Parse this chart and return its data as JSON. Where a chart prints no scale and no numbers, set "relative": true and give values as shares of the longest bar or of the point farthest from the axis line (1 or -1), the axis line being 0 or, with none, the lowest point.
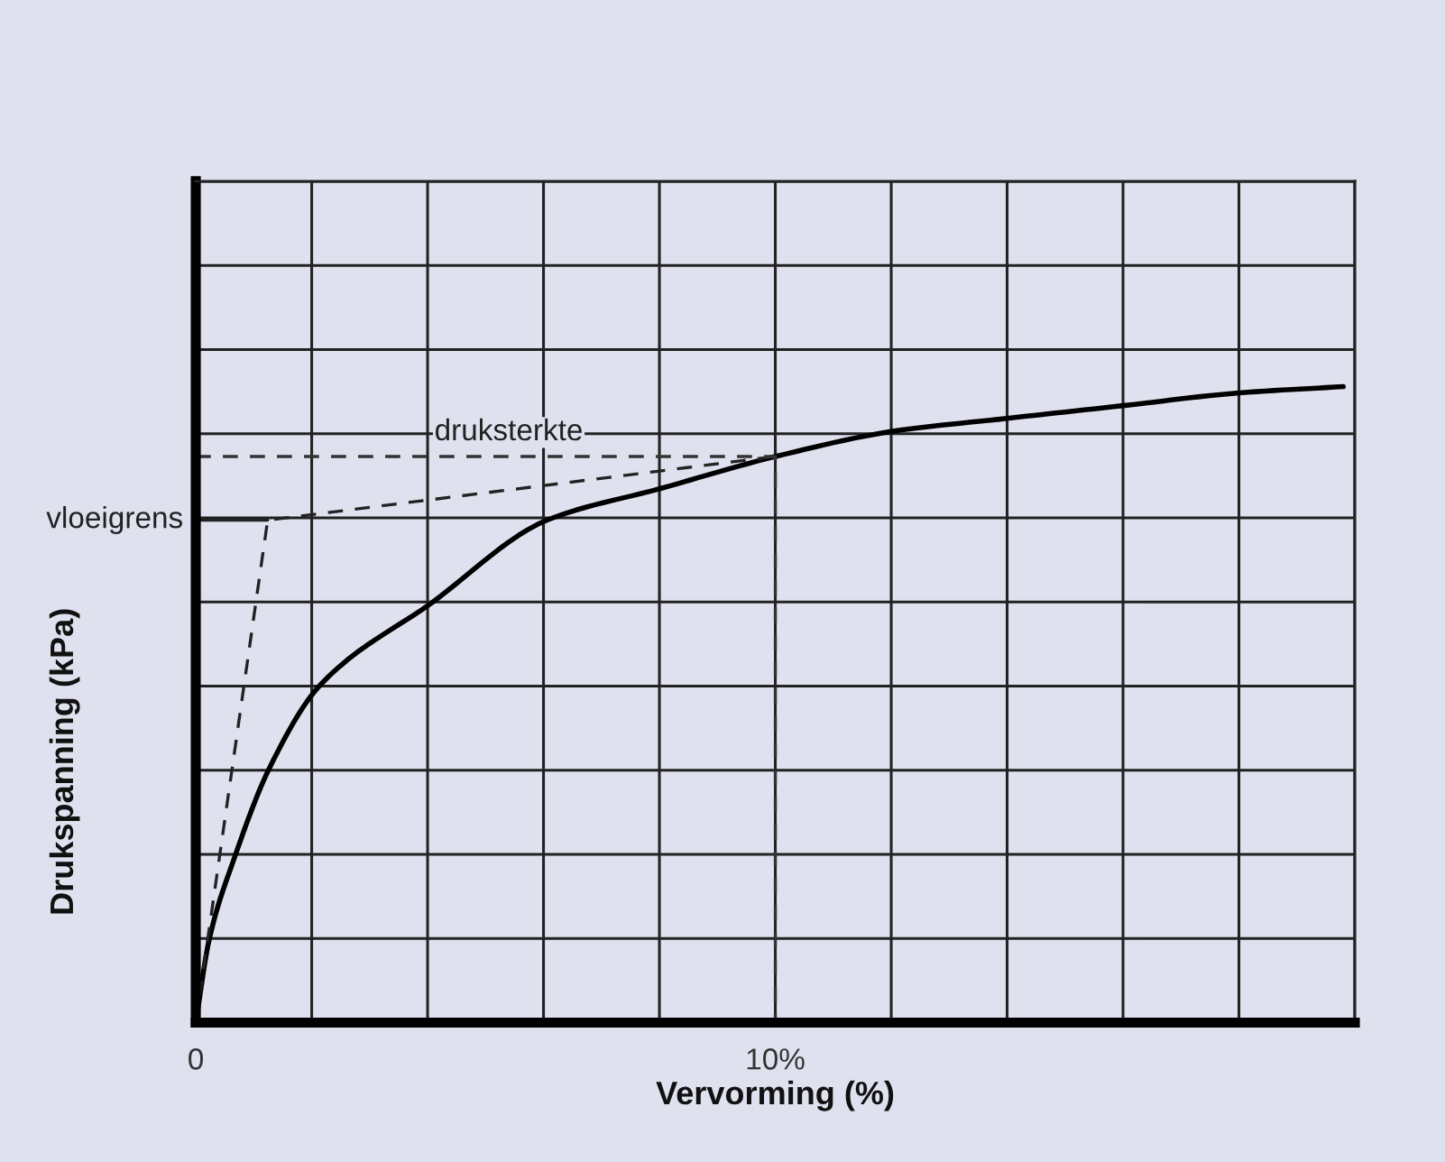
{
  "chart_data": {
    "type": "line",
    "relative": true,
    "xlabel": "Vervorming (%)",
    "ylabel": "Drukspanning (kPa)",
    "xlim": [
      0,
      20
    ],
    "xticks": [
      0,
      {
        "value": 2,
        "label": null
      },
      {
        "value": 4,
        "label": null
      },
      {
        "value": 6,
        "label": null
      },
      {
        "value": 8,
        "label": null
      },
      {
        "value": 10,
        "label": "10%"
      },
      {
        "value": 12,
        "label": null
      },
      {
        "value": 14,
        "label": null
      },
      {
        "value": 16,
        "label": null
      },
      {
        "value": 18,
        "label": null
      },
      {
        "value": 20,
        "label": null
      }
    ],
    "grid": true,
    "series": [
      {
        "color": "#000000",
        "line_style": "solid",
        "x": [
          0,
          0.23,
          0.67,
          1.27,
          2.14,
          4.07,
          6.06,
          8.03,
          10,
          12.05,
          14,
          16,
          18,
          19.8
        ],
        "values": [
          0,
          0.13,
          0.26,
          0.4,
          0.53,
          0.66,
          0.79,
          0.84,
          0.89,
          0.93,
          0.95,
          0.97,
          0.99,
          1
        ]
      },
      {
        "color": "#222222",
        "line_style": "dashed",
        "x": [
          0,
          1.24,
          10
        ],
        "values": [
          0,
          0.79,
          0.89
        ]
      },
      {
        "color": "#222222",
        "line_style": "solid",
        "x": [
          0,
          1.24
        ],
        "values": [
          0.79,
          0.79
        ]
      },
      {
        "color": "#333333",
        "line_style": "dashed",
        "x": [
          0,
          10,
          10
        ],
        "values": [
          0.89,
          0.89,
          0
        ]
      }
    ],
    "annotations": [
      {
        "text": "vloeigrens",
        "x": 0,
        "y": 0.79
      },
      {
        "text": "druksterkte",
        "x": 5.4,
        "y": 0.89
      }
    ]
  }
}
